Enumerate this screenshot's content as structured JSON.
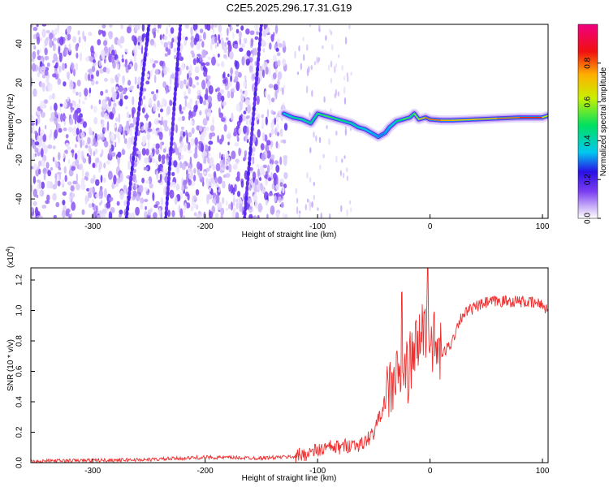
{
  "title": "C2E5.2025.296.17.31.G19",
  "chart_data": [
    {
      "type": "heatmap",
      "xlabel": "Height of straight line (km)",
      "ylabel": "Frequency (Hz)",
      "xlim": [
        -355,
        105
      ],
      "ylim": [
        -50,
        50
      ],
      "xticks": [
        -300,
        -200,
        -100,
        0,
        100
      ],
      "yticks": [
        -40,
        -20,
        0,
        20,
        40
      ],
      "colorbar": {
        "label": "Normalized spectral amplitude",
        "range": [
          0,
          1
        ],
        "ticks": [
          "0.0",
          "0.2",
          "0.4",
          "0.6",
          "0.8"
        ],
        "tick_values": [
          0.0,
          0.2,
          0.4,
          0.6,
          0.8
        ],
        "colors": [
          "#ffffff",
          "#c8b0f8",
          "#7a3cf0",
          "#2a10e6",
          "#00c8f0",
          "#00e060",
          "#c8f000",
          "#ffb000",
          "#f01010",
          "#f00080"
        ]
      },
      "noise_region": {
        "x_from": -355,
        "x_to": -128,
        "amplitude": 0.3
      },
      "signal_track": {
        "x": [
          -130,
          -122,
          -114,
          -106,
          -100,
          -94,
          -88,
          -82,
          -76,
          -70,
          -64,
          -58,
          -52,
          -46,
          -40,
          -36,
          -30,
          -24,
          -18,
          -14,
          -10,
          -4,
          0,
          10,
          20,
          40,
          60,
          80,
          100,
          105
        ],
        "freq": [
          4,
          2,
          1,
          -1,
          4,
          3,
          2,
          1,
          0,
          -1,
          -3,
          -4,
          -6,
          -8,
          -6,
          -3,
          0,
          1,
          2,
          4,
          1,
          2,
          1,
          0.5,
          0.5,
          1,
          1.5,
          2,
          2,
          3
        ],
        "amplitude": [
          0.45,
          0.5,
          0.55,
          0.5,
          0.55,
          0.6,
          0.6,
          0.55,
          0.55,
          0.5,
          0.5,
          0.45,
          0.45,
          0.4,
          0.4,
          0.45,
          0.5,
          0.6,
          0.6,
          0.55,
          0.7,
          0.8,
          0.85,
          0.8,
          0.75,
          0.75,
          0.8,
          0.85,
          0.9,
          0.5
        ]
      }
    },
    {
      "type": "line",
      "xlabel": "Height of straight line (km)",
      "ylabel": "SNR (10 * v/v)",
      "multiplier": "(x10^4)",
      "multiplier_base": "(x10",
      "multiplier_exp": "4",
      "multiplier_close": ")",
      "xlim": [
        -355,
        105
      ],
      "ylim": [
        0,
        1.28
      ],
      "xticks": [
        -300,
        -200,
        -100,
        0,
        100
      ],
      "yticks": [
        "0.0",
        "0.2",
        "0.4",
        "0.6",
        "0.8",
        "1.0",
        "1.2"
      ],
      "ytick_values": [
        0.0,
        0.2,
        0.4,
        0.6,
        0.8,
        1.0,
        1.2
      ],
      "color": "#f03030",
      "series": [
        {
          "name": "SNR",
          "x": [
            -355,
            -300,
            -250,
            -200,
            -150,
            -120,
            -110,
            -100,
            -90,
            -80,
            -70,
            -60,
            -50,
            -45,
            -40,
            -35,
            -30,
            -25,
            -20,
            -15,
            -10,
            -5,
            0,
            5,
            10,
            15,
            20,
            25,
            30,
            40,
            50,
            60,
            70,
            80,
            90,
            100,
            105
          ],
          "y": [
            0.01,
            0.015,
            0.02,
            0.035,
            0.03,
            0.04,
            0.06,
            0.08,
            0.1,
            0.1,
            0.12,
            0.12,
            0.2,
            0.3,
            0.4,
            0.5,
            0.55,
            0.6,
            0.6,
            0.7,
            0.8,
            0.9,
            0.85,
            0.75,
            0.7,
            0.75,
            0.8,
            0.92,
            0.98,
            1.02,
            1.05,
            1.06,
            1.06,
            1.06,
            1.05,
            1.04,
            1.0
          ]
        }
      ],
      "spikes": [
        {
          "x": -25,
          "y": 1.12
        },
        {
          "x": -2,
          "y": 1.28
        }
      ]
    }
  ]
}
